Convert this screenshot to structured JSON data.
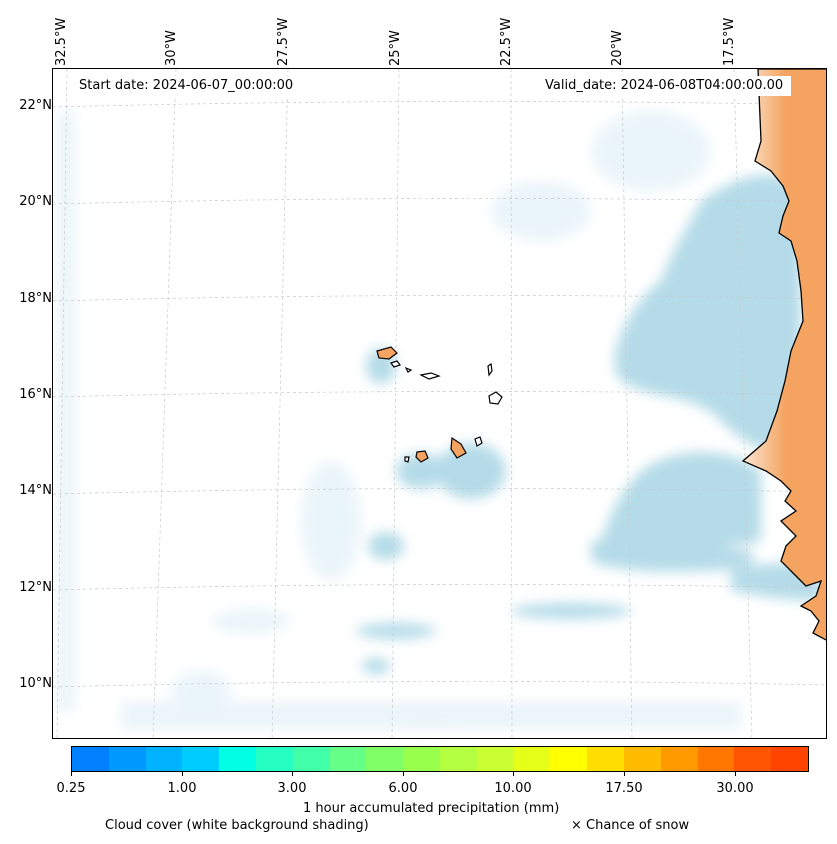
{
  "map": {
    "start_date": "Start date: 2024-06-07_00:00:00",
    "valid_date": "Valid_date: 2024-06-08T04:00:00.00",
    "longitude_labels": [
      "32.5°W",
      "30°W",
      "27.5°W",
      "25°W",
      "22.5°W",
      "20°W",
      "17.5°W"
    ],
    "latitude_labels": [
      "22°N",
      "20°N",
      "18°N",
      "16°N",
      "14°N",
      "12°N",
      "10°N"
    ],
    "colors": {
      "land": "#f4a460",
      "coastline": "#000000",
      "cloud_cover": "#add8e6",
      "gridline": "#b0b0b0"
    }
  },
  "legend": {
    "colorbar_colors": [
      "#0080ff",
      "#0099ff",
      "#00b2ff",
      "#00ccff",
      "#00ffe5",
      "#26ffc2",
      "#40ffa8",
      "#66ff88",
      "#80ff66",
      "#99ff4d",
      "#b3ff40",
      "#ccff33",
      "#e6ff19",
      "#ffff00",
      "#ffdd00",
      "#ffbb00",
      "#ff9900",
      "#ff7700",
      "#ff5500",
      "#ff4400"
    ],
    "tick_labels": [
      "0.25",
      "1.00",
      "3.00",
      "6.00",
      "10.00",
      "17.50",
      "30.00"
    ],
    "axis_label": "1 hour accumulated precipitation (mm)",
    "cloud_cover_label": "Cloud cover (white background shading)",
    "snow_label": "× Chance of snow"
  }
}
